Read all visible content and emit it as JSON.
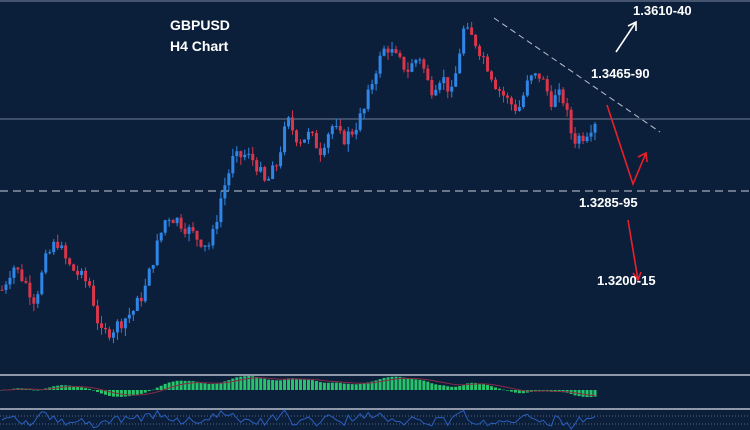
{
  "chart_data": {
    "type": "candlestick",
    "symbol": "GBPUSD",
    "timeframe": "H4 Chart",
    "title": "GBPUSD",
    "subtitle": "H4 Chart",
    "close_path": [
      1.3139,
      1.3177,
      1.3154,
      1.3123,
      1.3185,
      1.3215,
      1.3177,
      1.3162,
      1.3146,
      1.307,
      1.3078,
      1.3093,
      1.3108,
      1.3139,
      1.32,
      1.3253,
      1.3246,
      1.323,
      1.3215,
      1.3207,
      1.3284,
      1.3337,
      1.3345,
      1.3337,
      1.3299,
      1.333,
      1.3398,
      1.3368,
      1.3376,
      1.3353,
      1.3391,
      1.3368,
      1.3383,
      1.3414,
      1.3475,
      1.3513,
      1.349,
      1.3475,
      1.3498,
      1.3444,
      1.3467,
      1.3437,
      1.3536,
      1.3521,
      1.349,
      1.3452,
      1.3429,
      1.3414,
      1.346,
      1.3467,
      1.3429,
      1.3437,
      1.3368,
      1.3376,
      1.3398
    ],
    "horizontal_line": 1.34,
    "support_dashed_line": 1.329,
    "ylim": [
      1.302,
      1.357
    ],
    "annotations": {
      "target_up": "1.3610-40",
      "resistance": "1.3465-90",
      "support": "1.3285-95",
      "target_down": "1.3200-15"
    },
    "colors": {
      "background": "#0b1f3b",
      "bull_candle": "#2f86e6",
      "bear_candle": "#d9364a",
      "histogram": "#27c46b",
      "signal_line": "#8a2b46",
      "oscillator_line": "#2a5fc0",
      "arrow_up": "#ffffff",
      "arrow_scenario": "#e8202a"
    }
  }
}
